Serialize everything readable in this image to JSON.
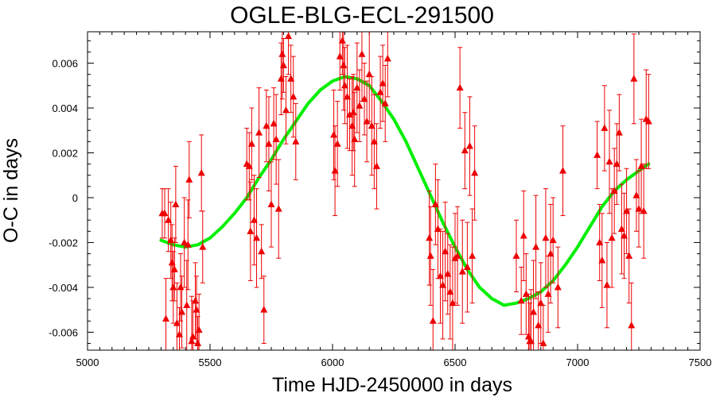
{
  "chart_data": {
    "type": "scatter",
    "title": "OGLE-BLG-ECL-291500",
    "xlabel": "Time HJD-2450000 in days",
    "ylabel": "O-C in days",
    "xlim": [
      5000,
      7500
    ],
    "ylim": [
      -0.0068,
      0.0074
    ],
    "xticks": [
      5000,
      5500,
      6000,
      6500,
      7000,
      7500
    ],
    "xtick_labels": [
      "5000",
      "5500",
      "6000",
      "6500",
      "7000",
      "7500"
    ],
    "yticks": [
      -0.006,
      -0.004,
      -0.002,
      0,
      0.002,
      0.004,
      0.006
    ],
    "ytick_labels": [
      "-0.006",
      "-0.004",
      "-0.002",
      "0",
      "0.002",
      "0.004",
      "0.006"
    ],
    "grid": false,
    "colors": {
      "points": "#ee0000",
      "fit": "#00ee00"
    },
    "series": [
      {
        "style": "points-with-errorbars",
        "color": "#ee0000",
        "x": [
          5305,
          5315,
          5320,
          5330,
          5340,
          5345,
          5350,
          5355,
          5360,
          5365,
          5375,
          5380,
          5385,
          5395,
          5405,
          5410,
          5415,
          5425,
          5430,
          5440,
          5445,
          5450,
          5455,
          5465,
          5470,
          5650,
          5660,
          5665,
          5670,
          5680,
          5690,
          5700,
          5710,
          5720,
          5730,
          5740,
          5750,
          5760,
          5770,
          5780,
          5790,
          5795,
          5800,
          5810,
          5820,
          5830,
          5840,
          5850,
          6005,
          6010,
          6020,
          6030,
          6040,
          6045,
          6050,
          6060,
          6070,
          6080,
          6085,
          6090,
          6100,
          6110,
          6120,
          6130,
          6140,
          6150,
          6160,
          6170,
          6180,
          6195,
          6205,
          6215,
          6225,
          6395,
          6400,
          6410,
          6420,
          6430,
          6440,
          6450,
          6460,
          6470,
          6480,
          6490,
          6500,
          6510,
          6520,
          6530,
          6540,
          6550,
          6560,
          6570,
          6580,
          6750,
          6770,
          6780,
          6790,
          6800,
          6805,
          6810,
          6820,
          6830,
          6840,
          6850,
          6860,
          6870,
          6880,
          6890,
          6900,
          6920,
          6940,
          7080,
          7090,
          7100,
          7110,
          7120,
          7130,
          7140,
          7150,
          7160,
          7170,
          7180,
          7190,
          7200,
          7210,
          7220,
          7230,
          7240,
          7250,
          7260,
          7270,
          7280,
          7290
        ],
        "y": [
          -0.0007,
          -0.0007,
          -0.0054,
          -0.001,
          -0.0019,
          -0.0029,
          -0.004,
          -0.0032,
          -0.0003,
          -0.0056,
          -0.0061,
          -0.004,
          -0.0051,
          -0.002,
          -0.0048,
          -0.0021,
          0.0008,
          -0.0064,
          -0.0062,
          -0.0046,
          -0.005,
          -0.0065,
          -0.0059,
          0.0011,
          -0.0022,
          0.0015,
          0.0014,
          -0.0015,
          0.0024,
          -0.001,
          -0.0018,
          0.0029,
          -0.0024,
          -0.005,
          0.0032,
          0.0024,
          -0.0003,
          0.0033,
          0.0026,
          -0.0005,
          0.0053,
          0.0064,
          0.0059,
          0.0039,
          0.0072,
          0.0053,
          0.0045,
          0.0025,
          0.0028,
          0.0012,
          0.0024,
          0.0063,
          0.007,
          0.0059,
          0.005,
          0.0045,
          0.0037,
          0.0032,
          0.0038,
          0.0026,
          0.0049,
          0.0041,
          0.0064,
          0.0044,
          0.0034,
          0.0055,
          0.0032,
          0.0025,
          0.0014,
          0.0047,
          0.0051,
          0.0042,
          0.0062,
          -0.0018,
          -0.0026,
          -0.0055,
          -0.0003,
          -0.0014,
          -0.0035,
          -0.0039,
          -0.0024,
          -0.0034,
          -0.0042,
          -0.0047,
          -0.0027,
          -0.0026,
          0.0049,
          -0.0033,
          0.0021,
          -0.0031,
          0.0023,
          -0.0026,
          0.0011,
          -0.0026,
          -0.0046,
          -0.0017,
          -0.0043,
          -0.0062,
          -0.0064,
          -0.0064,
          -0.0051,
          -0.0022,
          -0.0057,
          -0.0047,
          -0.0065,
          -0.0018,
          -0.0043,
          -0.0025,
          -0.0019,
          -0.004,
          0.0012,
          0.0019,
          -0.002,
          -0.0028,
          0.0031,
          -0.0039,
          0.0016,
          -0.0018,
          0.0003,
          0.0015,
          0.0029,
          -0.0014,
          -0.0017,
          -0.0006,
          -0.0026,
          -0.0057,
          0.0053,
          0.0001,
          -0.0005,
          0.0014,
          -0.0006,
          0.0035,
          0.0034
        ],
        "err": [
          0.0011,
          0.0011,
          0.0018,
          0.0014,
          0.0017,
          0.0017,
          0.0016,
          0.0014,
          0.0017,
          0.0018,
          0.0012,
          0.0015,
          0.0016,
          0.002,
          0.002,
          0.002,
          0.0017,
          0.002,
          0.0016,
          0.0017,
          0.0015,
          0.0012,
          0.0016,
          0.0017,
          0.0016,
          0.0016,
          0.0015,
          0.0022,
          0.0016,
          0.002,
          0.0022,
          0.002,
          0.0012,
          0.0015,
          0.0016,
          0.0021,
          0.0019,
          0.0016,
          0.002,
          0.0022,
          0.0016,
          0.002,
          0.0012,
          0.0015,
          0.0017,
          0.0015,
          0.0018,
          0.0017,
          0.002,
          0.002,
          0.0019,
          0.0015,
          0.0015,
          0.002,
          0.0017,
          0.0023,
          0.0016,
          0.0022,
          0.0017,
          0.0021,
          0.002,
          0.0016,
          0.0021,
          0.0016,
          0.0018,
          0.0021,
          0.0022,
          0.0021,
          0.0019,
          0.0016,
          0.0017,
          0.0017,
          0.0017,
          0.0021,
          0.0022,
          0.0023,
          0.0018,
          0.0022,
          0.0021,
          0.0024,
          0.0022,
          0.0018,
          0.0021,
          0.0025,
          0.002,
          0.0022,
          0.0018,
          0.0023,
          0.0017,
          0.002,
          0.0022,
          0.0021,
          0.0021,
          0.0016,
          0.0015,
          0.002,
          0.0018,
          0.0019,
          0.0017,
          0.0023,
          0.0023,
          0.0023,
          0.0015,
          0.0018,
          0.0017,
          0.0022,
          0.0017,
          0.0022,
          0.0019,
          0.0018,
          0.002,
          0.0015,
          0.0017,
          0.0021,
          0.0019,
          0.0019,
          0.0023,
          0.0022,
          0.0019,
          0.0018,
          0.0017,
          0.002,
          0.0019,
          0.0019,
          0.0021,
          0.0019,
          0.002,
          0.0016,
          0.0017,
          0.0021,
          0.0021,
          0.0022,
          0.0021
        ]
      },
      {
        "style": "fit-line",
        "color": "#00ee00",
        "x": [
          5300,
          5350,
          5400,
          5450,
          5500,
          5550,
          5600,
          5650,
          5700,
          5750,
          5800,
          5850,
          5900,
          5950,
          6000,
          6050,
          6100,
          6150,
          6200,
          6250,
          6300,
          6350,
          6400,
          6450,
          6500,
          6550,
          6600,
          6650,
          6700,
          6750,
          6800,
          6850,
          6900,
          6950,
          7000,
          7050,
          7100,
          7150,
          7200,
          7250,
          7290
        ],
        "y": [
          -0.0019,
          -0.0021,
          -0.0022,
          -0.0021,
          -0.0018,
          -0.0013,
          -0.0007,
          0.0,
          0.0009,
          0.0017,
          0.0026,
          0.0034,
          0.0042,
          0.0048,
          0.0052,
          0.0054,
          0.0053,
          0.005,
          0.0043,
          0.0035,
          0.0025,
          0.0013,
          0.0001,
          -0.0011,
          -0.0022,
          -0.0032,
          -0.004,
          -0.0045,
          -0.0048,
          -0.0047,
          -0.0045,
          -0.0042,
          -0.0037,
          -0.003,
          -0.0022,
          -0.0013,
          -0.0004,
          0.0003,
          0.0008,
          0.0012,
          0.0015
        ]
      }
    ]
  }
}
